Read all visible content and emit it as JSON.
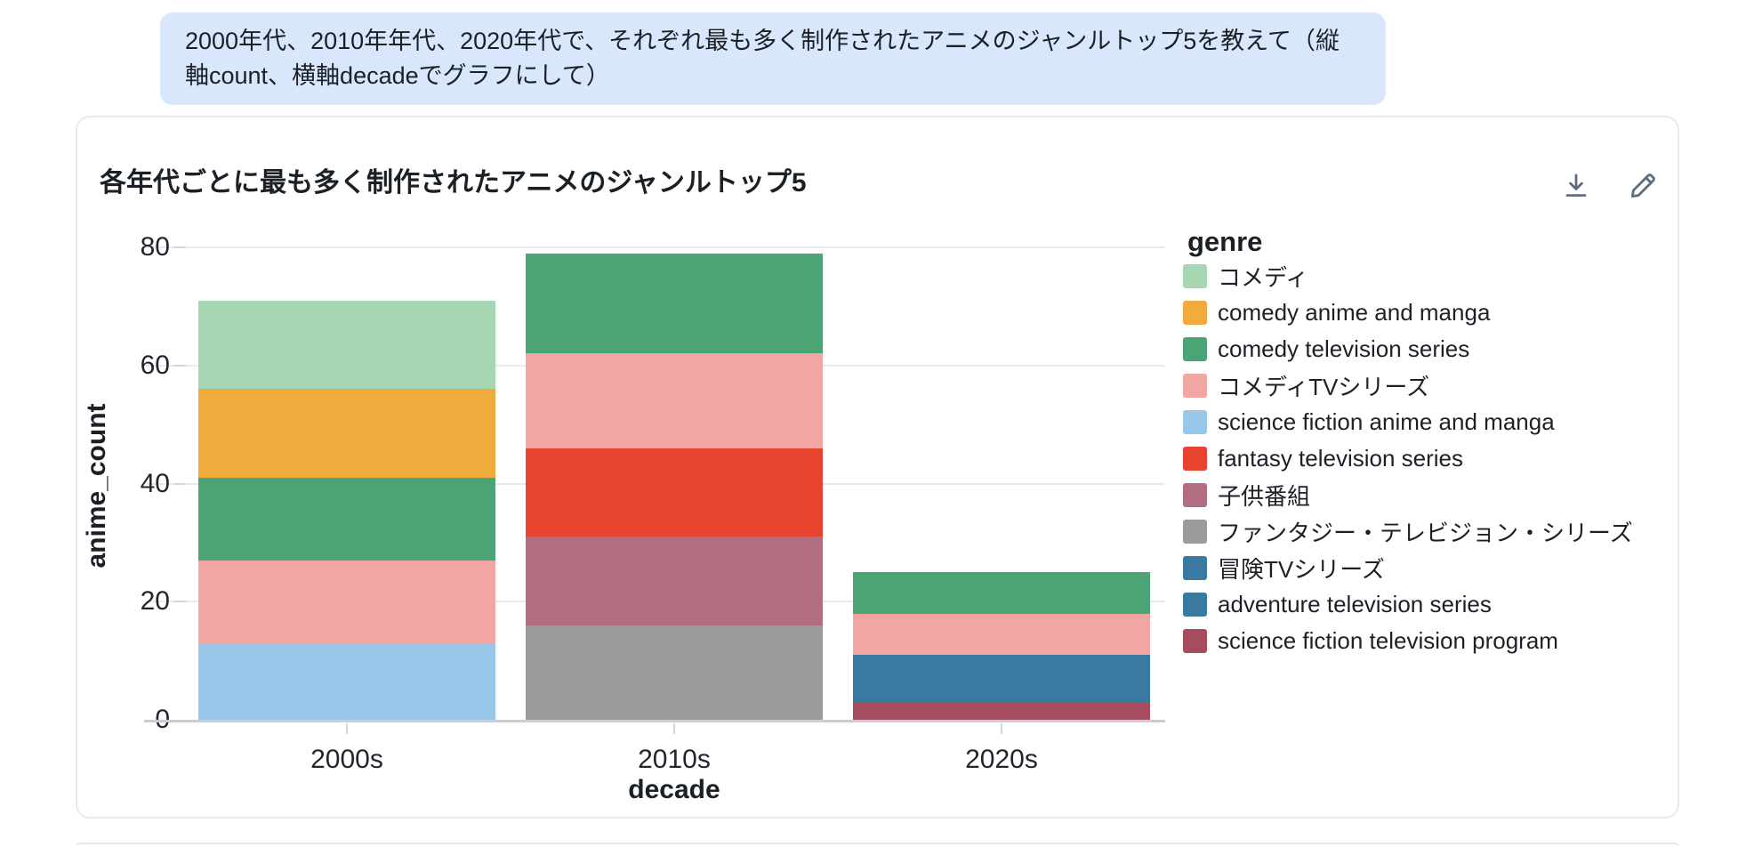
{
  "user_message": {
    "text": "2000年代、2010年年代、2020年代で、それぞれ最も多く制作されたアニメのジャンルトップ5を教えて（縦軸count、横軸decadeでグラフにして）"
  },
  "card": {
    "title": "各年代ごとに最も多く制作されたアニメのジャンルトップ5",
    "actions": [
      {
        "icon": "download"
      },
      {
        "icon": "pencil"
      }
    ]
  },
  "chart_data": {
    "type": "bar",
    "stacked": true,
    "title": "各年代ごとに最も多く制作されたアニメのジャンルトップ5",
    "xlabel": "decade",
    "ylabel": "anime_count",
    "categories": [
      "2000s",
      "2010s",
      "2020s"
    ],
    "ylim": [
      0,
      80
    ],
    "yticks": [
      0,
      20,
      40,
      60,
      80
    ],
    "grid": true,
    "legend_title": "genre",
    "legend_position": "right",
    "series": [
      {
        "name": "コメディ",
        "color": "#a6d7b2",
        "values": [
          15,
          0,
          0
        ]
      },
      {
        "name": "comedy anime and manga",
        "color": "#efac3d",
        "values": [
          15,
          0,
          0
        ]
      },
      {
        "name": "comedy television series",
        "color": "#4ba473",
        "values": [
          14,
          17,
          7
        ]
      },
      {
        "name": "コメディTVシリーズ",
        "color": "#f1a6a3",
        "values": [
          14,
          16,
          7
        ]
      },
      {
        "name": "science fiction anime and manga",
        "color": "#98c7e9",
        "values": [
          13,
          0,
          0
        ]
      },
      {
        "name": "fantasy television series",
        "color": "#e74430",
        "values": [
          0,
          15,
          0
        ]
      },
      {
        "name": "子供番組",
        "color": "#b06e80",
        "values": [
          0,
          15,
          0
        ]
      },
      {
        "name": "ファンタジー・テレビジョン・シリーズ",
        "color": "#9b9b9b",
        "values": [
          0,
          16,
          0
        ]
      },
      {
        "name": "冒険TVシリーズ",
        "color": "#3a79a1",
        "values": [
          0,
          0,
          4
        ]
      },
      {
        "name": "adventure television series",
        "color": "#3a79a1",
        "values": [
          0,
          0,
          4
        ]
      },
      {
        "name": "science fiction television program",
        "color": "#a74b5e",
        "values": [
          0,
          0,
          3
        ]
      }
    ]
  }
}
